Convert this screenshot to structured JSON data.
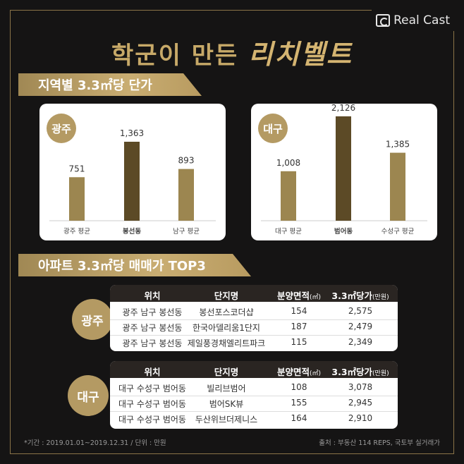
{
  "brand": "Real Cast",
  "title_prefix": "학군이 만든 ",
  "title_accent": "리치벨트",
  "section1": "지역별 3.3㎡당 단가",
  "section2": "아파트 3.3㎡당 매매가 TOP3",
  "colors": {
    "gold": "#b49a63",
    "bar_light": "#9c8650",
    "bar_dark": "#5c4a26",
    "bg": "#151414"
  },
  "chart_data": [
    {
      "type": "bar",
      "city": "광주",
      "categories": [
        "광주 평균",
        "봉선동",
        "남구 평균"
      ],
      "values": [
        751,
        1363,
        893
      ],
      "value_labels": [
        "751",
        "1,363",
        "893"
      ],
      "highlight": 1
    },
    {
      "type": "bar",
      "city": "대구",
      "categories": [
        "대구 평균",
        "범어동",
        "수성구 평균"
      ],
      "values": [
        1008,
        2126,
        1385
      ],
      "value_labels": [
        "1,008",
        "2,126",
        "1,385"
      ],
      "highlight": 1
    }
  ],
  "table_headers": [
    "위치",
    "단지명",
    "분양면적",
    "(㎡)",
    "3.3㎡당가",
    "(만원)"
  ],
  "tables": [
    {
      "city": "광주",
      "rows": [
        [
          "광주 남구 봉선동",
          "봉선포스코더샵",
          "154",
          "2,575"
        ],
        [
          "광주 남구 봉선동",
          "한국아델리움1단지",
          "187",
          "2,479"
        ],
        [
          "광주 남구 봉선동",
          "제일풍경채엘리트파크",
          "115",
          "2,349"
        ]
      ]
    },
    {
      "city": "대구",
      "rows": [
        [
          "대구 수성구 범어동",
          "빌리브범어",
          "108",
          "3,078"
        ],
        [
          "대구 수성구 범어동",
          "범어SK뷰",
          "155",
          "2,945"
        ],
        [
          "대구 수성구 범어동",
          "두산위브더제니스",
          "164",
          "2,910"
        ]
      ]
    }
  ],
  "footnote_left": "*기간 : 2019.01.01~2019.12.31 / 단위 : 만원",
  "footnote_right": "출처 : 부동산 114 REPS, 국토부 실거래가"
}
